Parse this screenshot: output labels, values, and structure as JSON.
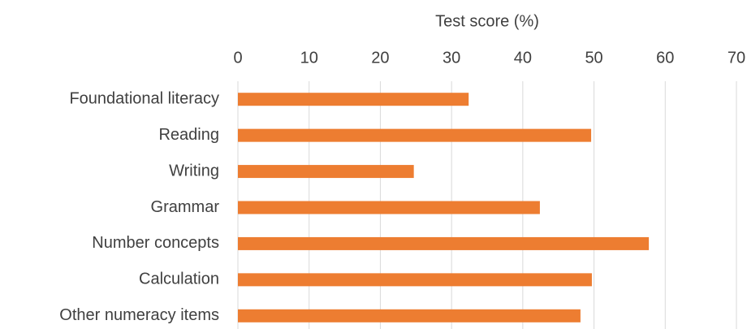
{
  "chart_data": {
    "type": "bar",
    "orientation": "horizontal",
    "x_label": "Test score (%)",
    "categories": [
      "Foundational literacy",
      "Reading",
      "Writing",
      "Grammar",
      "Number concepts",
      "Calculation",
      "Other numeracy items"
    ],
    "values": [
      32.4,
      49.6,
      24.7,
      42.4,
      57.7,
      49.7,
      48.1
    ],
    "color": "#ed7d31",
    "xlim": [
      0,
      70
    ],
    "xticks": [
      0,
      10,
      20,
      30,
      40,
      50,
      60,
      70
    ],
    "grid": true
  }
}
